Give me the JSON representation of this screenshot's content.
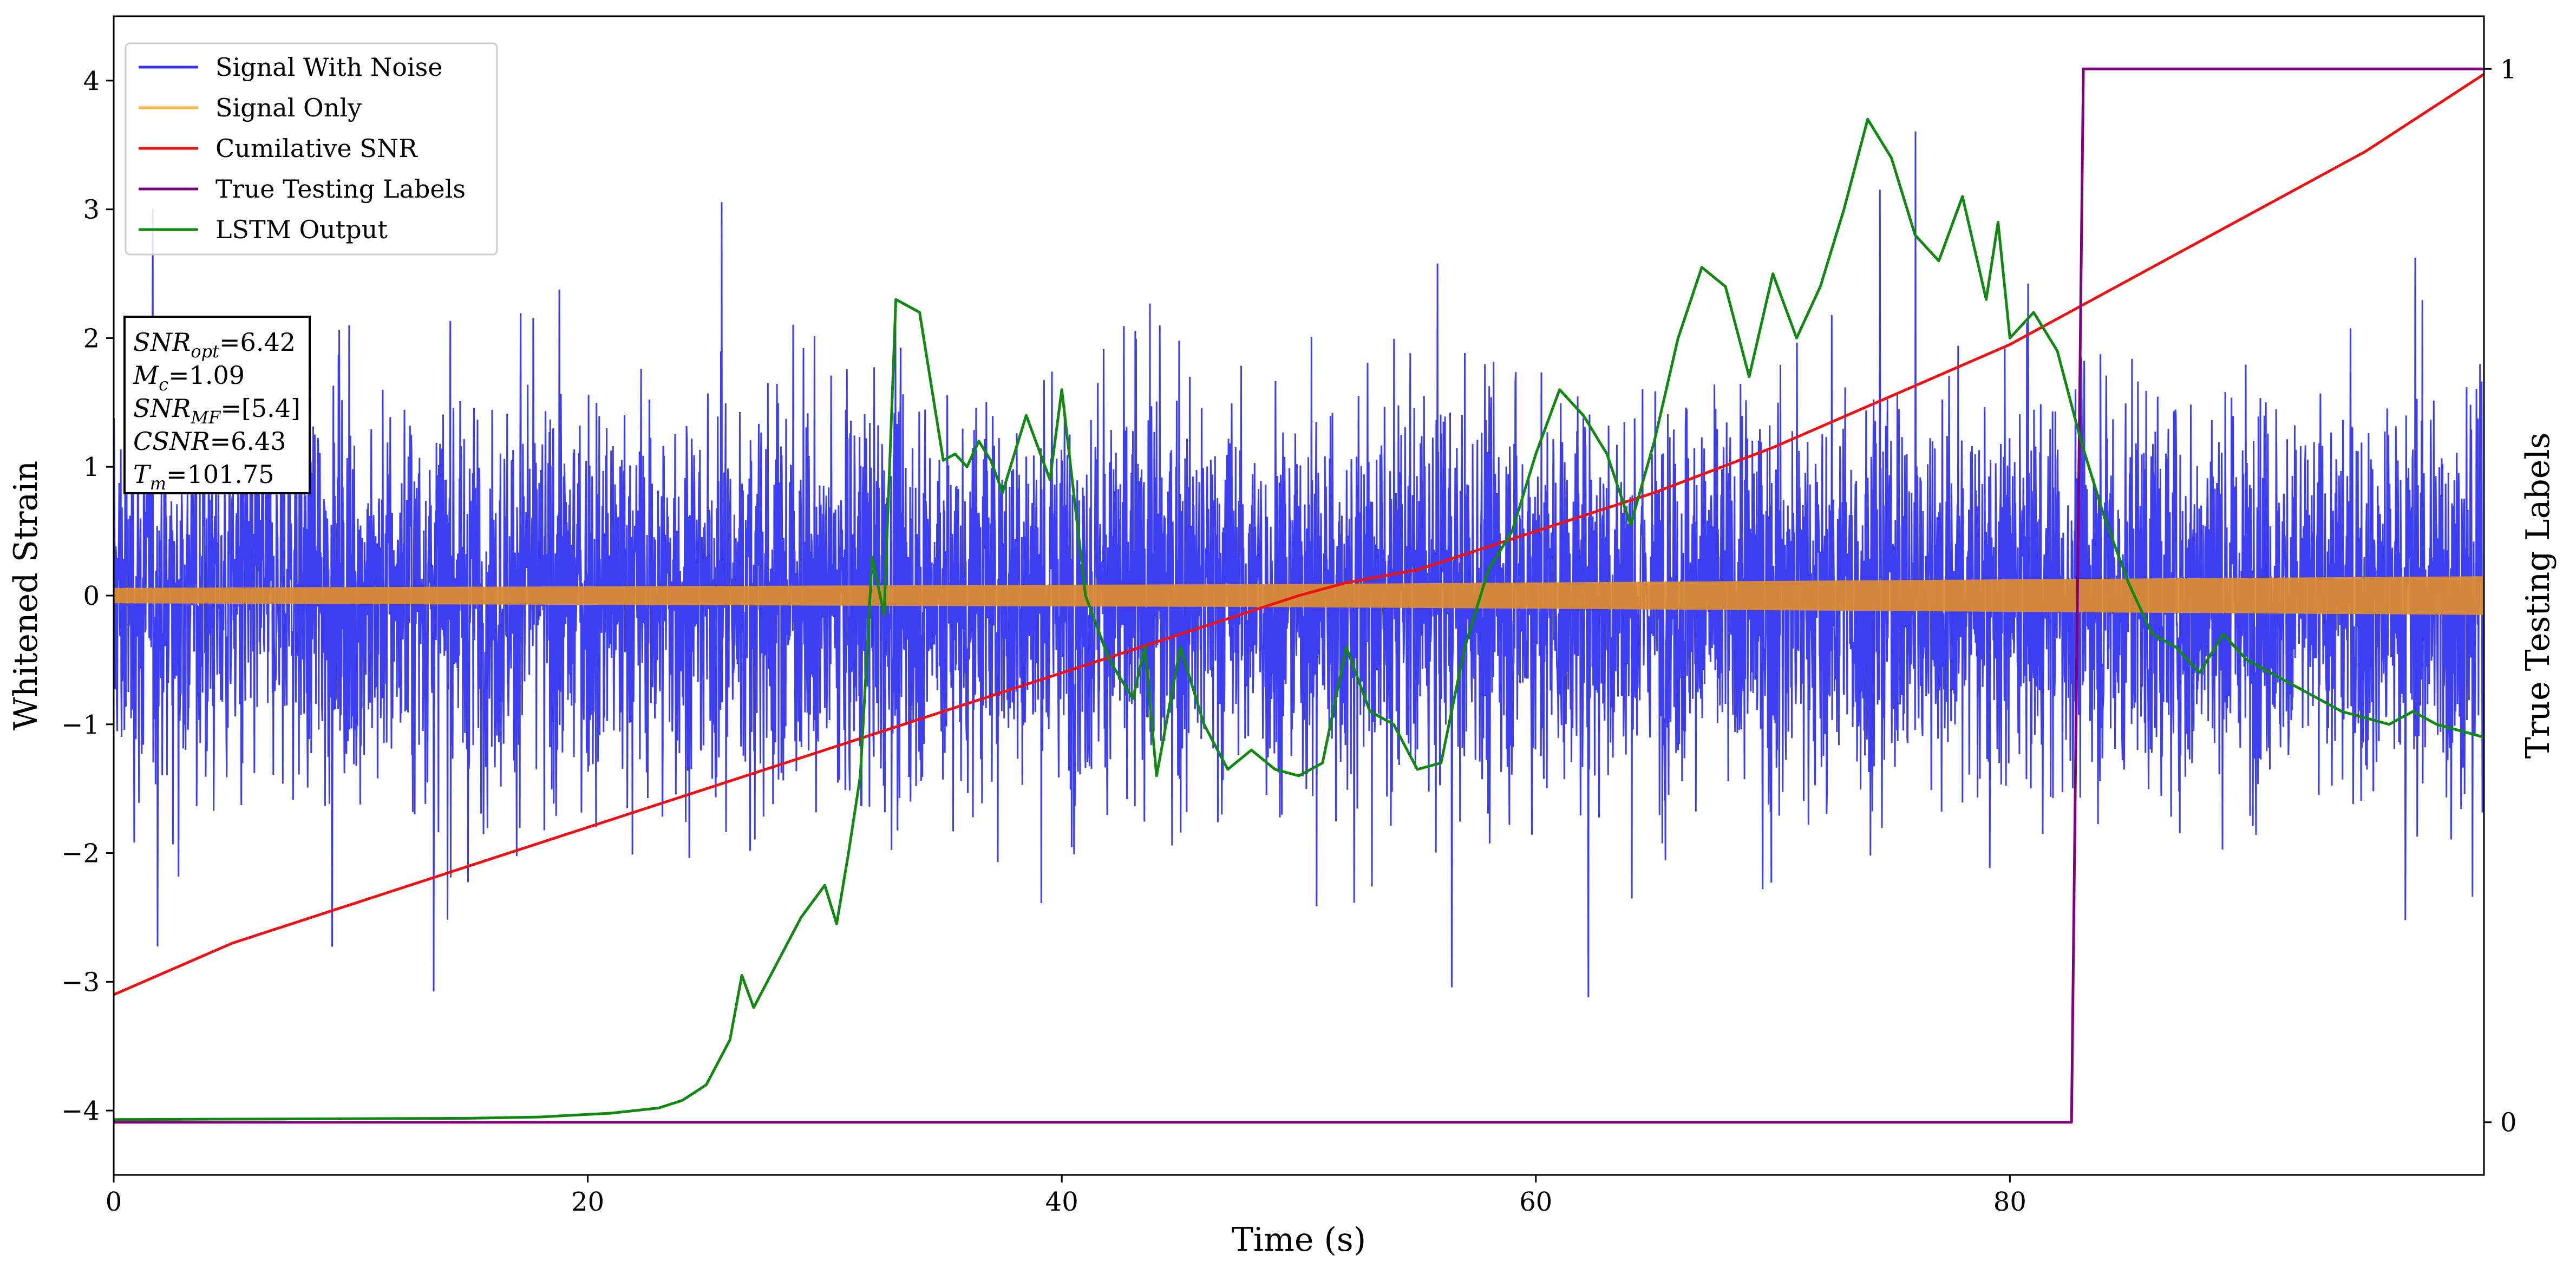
{
  "chart_data": {
    "type": "line",
    "xlabel": "Time (s)",
    "ylabel": "Whitened Strain",
    "y2label": "True Testing Labels",
    "xlim": [
      0,
      100
    ],
    "ylim": [
      -4.5,
      4.5
    ],
    "y2lim": [
      -0.05,
      1.05
    ],
    "x_ticks": [
      0,
      20,
      40,
      60,
      80
    ],
    "y_ticks": [
      -4,
      -3,
      -2,
      -1,
      0,
      1,
      2,
      3,
      4
    ],
    "y2_ticks": [
      0,
      1
    ],
    "x_tick_labels": [
      "0",
      "20",
      "40",
      "60",
      "80"
    ],
    "y_tick_labels": [
      "−4",
      "−3",
      "−2",
      "−1",
      "0",
      "1",
      "2",
      "3",
      "4"
    ],
    "y2_tick_labels": [
      "0",
      "1"
    ],
    "grid": false,
    "legend_position": "top-left",
    "series": [
      {
        "name": "Signal With Noise",
        "color": "#3333f0",
        "kind": "noise",
        "x_range": [
          0,
          100
        ],
        "typical_amplitude": 1.3,
        "extreme_range": [
          -4.1,
          3.8
        ]
      },
      {
        "name": "Signal Only",
        "color": "#f5b742",
        "kind": "band",
        "x": [
          0,
          50,
          100
        ],
        "amplitude": [
          0.06,
          0.09,
          0.15
        ]
      },
      {
        "name": "Cumilative SNR",
        "color": "#ee1111",
        "axis": "y",
        "x": [
          0,
          5,
          10,
          15,
          20,
          25,
          30,
          35,
          40,
          45,
          50,
          52,
          55,
          60,
          65,
          70,
          75,
          80,
          85,
          90,
          95,
          100
        ],
        "y": [
          -3.1,
          -2.7,
          -2.4,
          -2.1,
          -1.8,
          -1.5,
          -1.2,
          -0.9,
          -0.6,
          -0.3,
          0.0,
          0.1,
          0.2,
          0.5,
          0.8,
          1.15,
          1.55,
          1.95,
          2.45,
          2.95,
          3.45,
          4.05
        ]
      },
      {
        "name": "True Testing Labels",
        "color": "#800080",
        "axis": "y2",
        "x": [
          0,
          82.6,
          83.1,
          100
        ],
        "y": [
          0,
          0,
          1,
          1
        ]
      },
      {
        "name": "LSTM Output",
        "color": "#118811",
        "axis": "y",
        "x": [
          0,
          15,
          18,
          20,
          21,
          22,
          23,
          24,
          25,
          26,
          26.5,
          27,
          28,
          29,
          30,
          30.5,
          31,
          31.5,
          32,
          32.5,
          33,
          33.5,
          34,
          35,
          35.5,
          36,
          36.5,
          37,
          37.5,
          38,
          38.5,
          39,
          39.5,
          40,
          41,
          42,
          43,
          43.5,
          44,
          45,
          46,
          47,
          48,
          49,
          50,
          51,
          52,
          53,
          54,
          55,
          56,
          57,
          58,
          59,
          60,
          61,
          62,
          63,
          64,
          65,
          66,
          67,
          68,
          69,
          70,
          71,
          72,
          73,
          74,
          75,
          76,
          77,
          78,
          79,
          79.5,
          80,
          81,
          82,
          83,
          84,
          85,
          86,
          87,
          88,
          89,
          90,
          91,
          92,
          93,
          94,
          95,
          96,
          97,
          98,
          99,
          100
        ],
        "y": [
          -4.07,
          -4.06,
          -4.05,
          -4.03,
          -4.02,
          -4.0,
          -3.98,
          -3.92,
          -3.8,
          -3.45,
          -2.95,
          -3.2,
          -2.85,
          -2.5,
          -2.25,
          -2.55,
          -2.0,
          -1.4,
          0.3,
          -0.15,
          2.3,
          2.25,
          2.2,
          1.05,
          1.1,
          1.0,
          1.2,
          1.05,
          0.8,
          1.1,
          1.4,
          1.15,
          0.9,
          1.6,
          0.0,
          -0.5,
          -0.8,
          -0.4,
          -1.4,
          -0.4,
          -1.0,
          -1.35,
          -1.2,
          -1.35,
          -1.4,
          -1.3,
          -0.4,
          -0.9,
          -1.0,
          -1.35,
          -1.3,
          -0.4,
          0.2,
          0.5,
          1.1,
          1.6,
          1.4,
          1.1,
          0.55,
          1.2,
          2.0,
          2.55,
          2.4,
          1.7,
          2.5,
          2.0,
          2.4,
          3.0,
          3.7,
          3.4,
          2.8,
          2.6,
          3.1,
          2.3,
          2.9,
          2.0,
          2.2,
          1.9,
          1.2,
          0.6,
          0.1,
          -0.3,
          -0.4,
          -0.6,
          -0.3,
          -0.5,
          -0.6,
          -0.7,
          -0.8,
          -0.9,
          -0.95,
          -1.0,
          -0.9,
          -1.0,
          -1.05,
          -1.1
        ]
      }
    ],
    "info_box": [
      "SNRopt=6.42",
      "Mc=1.09",
      "SNRMF=[5.4]",
      "CSNR=6.43",
      "Tm=101.75"
    ]
  },
  "info_box": {
    "lines": [
      {
        "base": "SNR",
        "sub": "opt",
        "value": "=6.42"
      },
      {
        "base": "M",
        "sub": "c",
        "value": "=1.09"
      },
      {
        "base": "SNR",
        "sub": "MF",
        "value": "=[5.4]"
      },
      {
        "base": "CSNR",
        "sub": "",
        "value": "=6.43"
      },
      {
        "base": "T",
        "sub": "m",
        "value": "=101.75"
      }
    ]
  }
}
